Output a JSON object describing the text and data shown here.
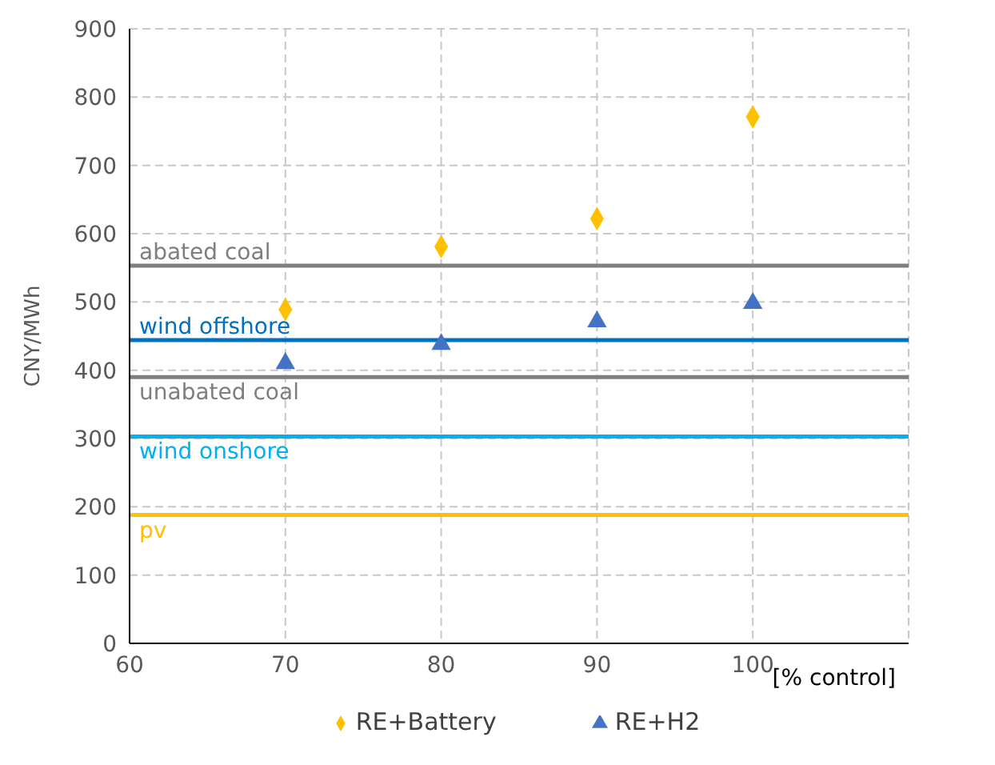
{
  "chart_data": {
    "type": "scatter",
    "xlabel": "[% control]",
    "ylabel": "CNY/MWh",
    "x": [
      70,
      80,
      90,
      100
    ],
    "series": [
      {
        "name": "RE+Battery",
        "color": "#ffc000",
        "marker": "diamond",
        "values": [
          489,
          581,
          622,
          771
        ]
      },
      {
        "name": "RE+H2",
        "color": "#4472c4",
        "marker": "triangle",
        "values": [
          410,
          438,
          471,
          498
        ]
      }
    ],
    "ref_lines": [
      {
        "axis": "y",
        "value": 553,
        "label": "abated coal",
        "color": "#7f7f7f"
      },
      {
        "axis": "y",
        "value": 444,
        "label": "wind offshore",
        "color": "#0070c0"
      },
      {
        "axis": "y",
        "value": 390,
        "label": "unabated coal",
        "color": "#7f7f7f"
      },
      {
        "axis": "y",
        "value": 303,
        "label": "wind onshore",
        "color": "#00b0f0"
      },
      {
        "axis": "y",
        "value": 188,
        "label": "pv",
        "color": "#ffc000"
      }
    ],
    "xlim": [
      60,
      110
    ],
    "xticks": [
      60,
      70,
      80,
      90,
      100
    ],
    "ylim": [
      0,
      900
    ],
    "yticks": [
      0,
      100,
      200,
      300,
      400,
      500,
      600,
      700,
      800,
      900
    ],
    "grid": true,
    "legend": "bottom"
  }
}
